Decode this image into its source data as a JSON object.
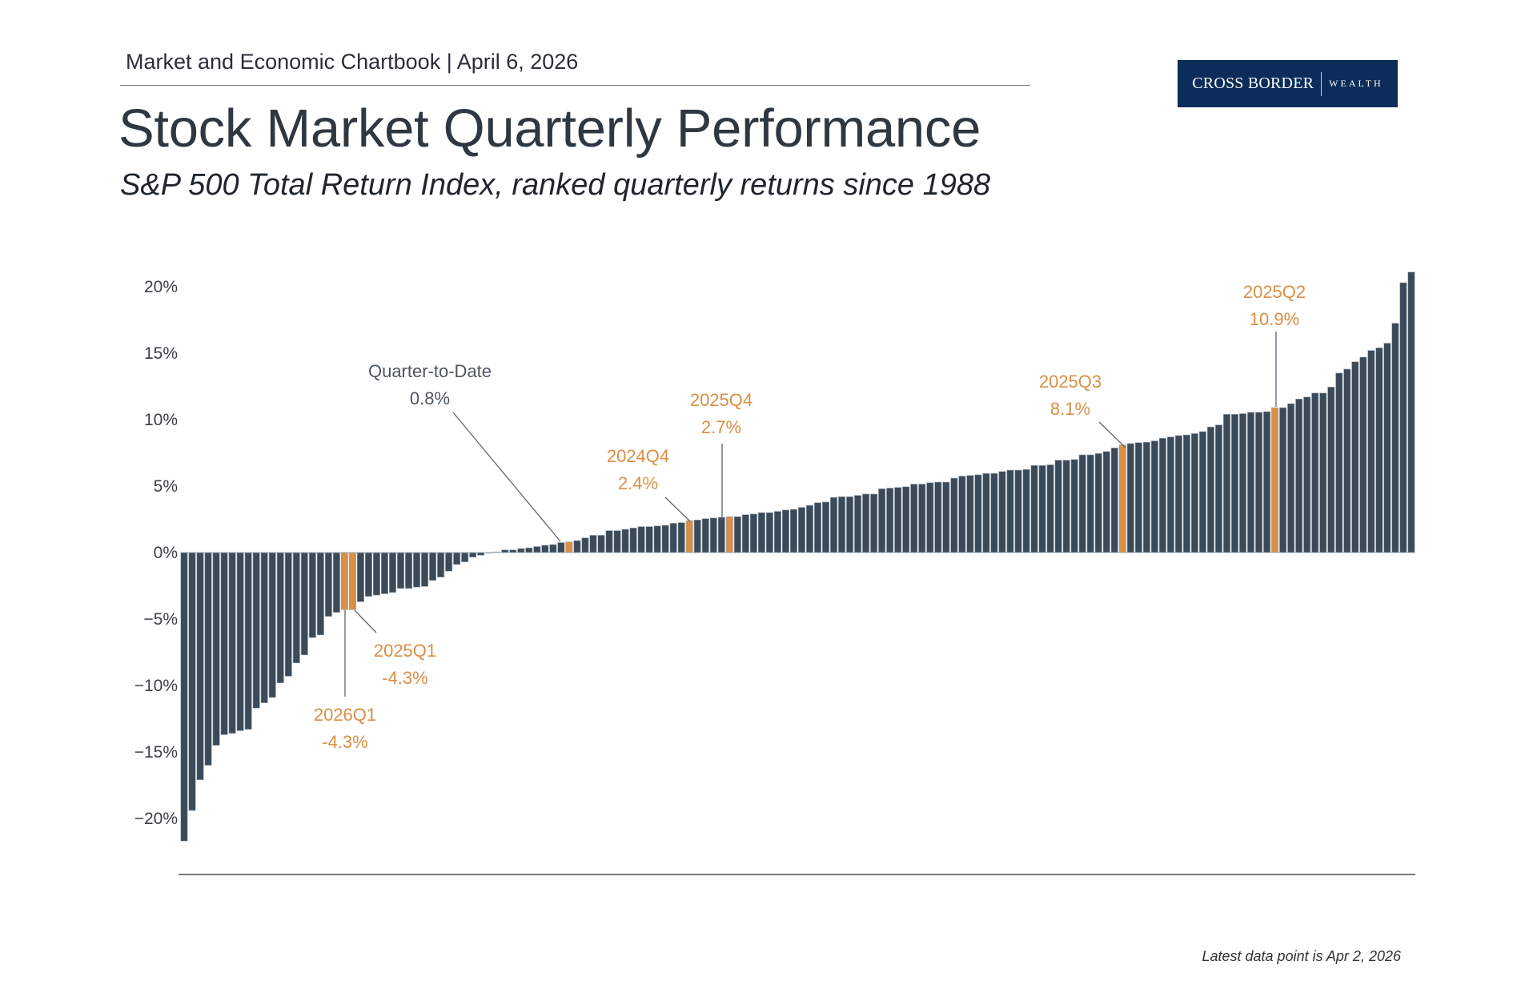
{
  "header": {
    "chartbook": "Market and Economic Chartbook | April 6, 2026",
    "title": "Stock Market Quarterly Performance",
    "subtitle": "S&P 500 Total Return Index, ranked quarterly returns since 1988"
  },
  "logo": {
    "name": "CROSS BORDER",
    "suffix": "WEALTH"
  },
  "footer": {
    "note": "Latest data point is Apr 2, 2026"
  },
  "colors": {
    "bar": "#3b4a59",
    "highlight": "#d98f45",
    "annotation_neutral": "#4c5661",
    "logo_bg": "#0c2d5a"
  },
  "chart_data": {
    "type": "bar",
    "title": "Stock Market Quarterly Performance",
    "xlabel": "",
    "ylabel": "",
    "ylim": [
      -22,
      21.5
    ],
    "grid": false,
    "y_ticks": [
      {
        "value": 20,
        "label": "20%"
      },
      {
        "value": 15,
        "label": "15%"
      },
      {
        "value": 10,
        "label": "10%"
      },
      {
        "value": 5,
        "label": "5%"
      },
      {
        "value": 0,
        "label": "0%"
      },
      {
        "value": -5,
        "label": "−5%"
      },
      {
        "value": -10,
        "label": "−10%"
      },
      {
        "value": -15,
        "label": "−15%"
      },
      {
        "value": -20,
        "label": "−20%"
      }
    ],
    "values": [
      -21.7,
      -19.4,
      -17.1,
      -16.0,
      -14.5,
      -13.7,
      -13.6,
      -13.4,
      -13.3,
      -11.7,
      -11.3,
      -10.9,
      -9.8,
      -9.3,
      -8.3,
      -7.7,
      -6.4,
      -6.2,
      -4.8,
      -4.5,
      -4.3,
      -4.3,
      -3.7,
      -3.3,
      -3.2,
      -3.1,
      -3.0,
      -2.7,
      -2.7,
      -2.6,
      -2.55,
      -2.1,
      -1.85,
      -1.4,
      -0.9,
      -0.7,
      -0.35,
      -0.2,
      -0.05,
      0.05,
      0.2,
      0.2,
      0.3,
      0.35,
      0.45,
      0.55,
      0.6,
      0.75,
      0.8,
      0.9,
      1.1,
      1.3,
      1.3,
      1.65,
      1.65,
      1.75,
      1.85,
      1.95,
      1.95,
      2.0,
      2.05,
      2.2,
      2.25,
      2.4,
      2.45,
      2.55,
      2.6,
      2.65,
      2.7,
      2.7,
      2.85,
      2.9,
      3.0,
      3.0,
      3.1,
      3.2,
      3.25,
      3.4,
      3.55,
      3.75,
      3.8,
      4.15,
      4.2,
      4.2,
      4.3,
      4.4,
      4.4,
      4.8,
      4.85,
      4.9,
      4.95,
      5.15,
      5.15,
      5.25,
      5.3,
      5.3,
      5.6,
      5.75,
      5.8,
      5.85,
      5.95,
      5.95,
      6.1,
      6.2,
      6.2,
      6.25,
      6.55,
      6.55,
      6.6,
      6.95,
      6.95,
      7.0,
      7.35,
      7.35,
      7.45,
      7.6,
      7.87,
      8.1,
      8.2,
      8.27,
      8.3,
      8.4,
      8.6,
      8.7,
      8.8,
      8.85,
      8.95,
      9.1,
      9.45,
      9.6,
      10.4,
      10.4,
      10.45,
      10.55,
      10.55,
      10.6,
      10.9,
      10.9,
      11.2,
      11.55,
      11.7,
      12.0,
      12.0,
      12.45,
      13.5,
      13.8,
      14.35,
      14.7,
      15.2,
      15.4,
      15.75,
      17.25,
      20.3,
      21.1
    ],
    "annotations": [
      {
        "index": 20,
        "period": "2026Q1",
        "value_label": "-4.3%",
        "highlight": true
      },
      {
        "index": 21,
        "period": "2025Q1",
        "value_label": "-4.3%",
        "highlight": true
      },
      {
        "index": 48,
        "period": "Quarter-to-Date",
        "value_label": "0.8%",
        "highlight": true,
        "neutral_text": true
      },
      {
        "index": 63,
        "period": "2024Q4",
        "value_label": "2.4%",
        "highlight": true
      },
      {
        "index": 68,
        "period": "2025Q4",
        "value_label": "2.7%",
        "highlight": true
      },
      {
        "index": 117,
        "period": "2025Q3",
        "value_label": "8.1%",
        "highlight": true
      },
      {
        "index": 136,
        "period": "2025Q2",
        "value_label": "10.9%",
        "highlight": true
      }
    ]
  }
}
